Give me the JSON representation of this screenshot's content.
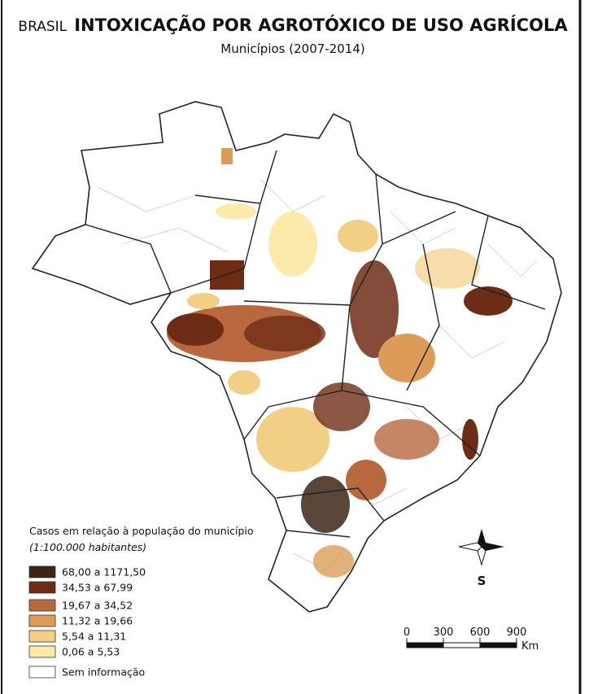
{
  "header": {
    "country": "BRASIL",
    "title": "INTOXICAÇÃO POR AGROTÓXICO DE USO AGRÍCOLA",
    "subtitle": "Municípios (2007-2014)"
  },
  "legend": {
    "title": "Casos em relação à população do município",
    "subtitle": "(1:100.000 habitantes)",
    "items": [
      {
        "label": "68,00 a 1171,50",
        "color": "#3d2416"
      },
      {
        "label": "34,53 a 67,99",
        "color": "#6e2c15"
      },
      {
        "label": "19,67 a 34,52",
        "color": "#b8683c"
      },
      {
        "label": "11,32 a 19,66",
        "color": "#dc9c58"
      },
      {
        "label": "5,54 a 11,31",
        "color": "#f3cf86"
      },
      {
        "label": "0,06 a 5,53",
        "color": "#fbeaa9"
      },
      {
        "label": "Sem informação",
        "color": "#ffffff"
      }
    ]
  },
  "compass": {
    "label": "S"
  },
  "scale": {
    "ticks": [
      0,
      300,
      600,
      900
    ],
    "unit": "Km"
  }
}
